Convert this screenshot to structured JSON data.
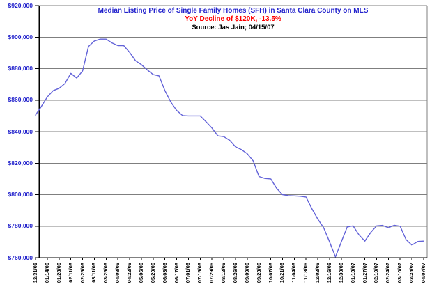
{
  "title": {
    "line1": "Median Listing Price of Single Family Homes (SFH) in Santa Clara County on MLS",
    "line2": "YoY Decline of $120K, -13.5%",
    "line3": "Source: Jas Jain; 04/15/07"
  },
  "colors": {
    "title_blue": "#2222cc",
    "decline_red": "#ff0000",
    "source_black": "#000000",
    "series_line": "#6262d8",
    "gridline": "#7f7f7f",
    "axis": "#000000",
    "y_label_blue": "#2222cc",
    "x_label_black": "#000000",
    "background": "#ffffff"
  },
  "chart_data": {
    "type": "line",
    "title": "Median Listing Price of Single Family Homes (SFH) in Santa Clara County on MLS",
    "subtitle": "YoY Decline of $120K, -13.5%",
    "source": "Source: Jas Jain; 04/15/07",
    "x": [
      "12/31/05",
      "01/07/06",
      "01/14/06",
      "01/21/06",
      "01/28/06",
      "02/04/06",
      "02/11/06",
      "02/18/06",
      "02/25/06",
      "03/04/06",
      "03/11/06",
      "03/18/06",
      "03/25/06",
      "04/01/06",
      "04/08/06",
      "04/15/06",
      "04/22/06",
      "04/29/06",
      "05/06/06",
      "05/13/06",
      "05/20/06",
      "05/27/06",
      "06/03/06",
      "06/10/06",
      "06/17/06",
      "06/24/06",
      "07/01/06",
      "07/08/06",
      "07/15/06",
      "07/22/06",
      "07/29/06",
      "08/05/06",
      "08/12/06",
      "08/19/06",
      "08/26/06",
      "09/02/06",
      "09/09/06",
      "09/16/06",
      "09/23/06",
      "09/30/06",
      "10/07/06",
      "10/14/06",
      "10/21/06",
      "10/28/06",
      "11/04/06",
      "11/11/06",
      "11/18/06",
      "11/25/06",
      "12/02/06",
      "12/09/06",
      "12/16/06",
      "12/23/06",
      "12/30/06",
      "01/06/07",
      "01/13/07",
      "01/20/07",
      "01/27/07",
      "02/03/07",
      "02/10/07",
      "02/17/07",
      "02/24/07",
      "03/03/07",
      "03/10/07",
      "03/17/07",
      "03/24/07",
      "03/31/07",
      "04/07/07"
    ],
    "values": [
      850500,
      856000,
      862000,
      866000,
      867500,
      870500,
      877000,
      874000,
      878500,
      894000,
      897500,
      898700,
      898700,
      896300,
      894600,
      894600,
      890300,
      885000,
      882500,
      879200,
      876200,
      875400,
      866000,
      858800,
      853500,
      850200,
      850000,
      850000,
      850000,
      846300,
      842300,
      837300,
      836800,
      834500,
      830400,
      828600,
      826000,
      821500,
      811500,
      810300,
      810000,
      804000,
      800000,
      799400,
      799200,
      799000,
      798500,
      791000,
      784500,
      779000,
      770000,
      760500,
      770000,
      779500,
      780200,
      774500,
      770500,
      776000,
      780200,
      780500,
      779000,
      780600,
      780000,
      771500,
      768000,
      770300,
      770500
    ],
    "x_tick_label_every": 2,
    "ylim": [
      760000,
      920000
    ],
    "y_tick_interval": 20000,
    "y_tick_labels": [
      "$920,000",
      "$900,000",
      "$880,000",
      "$860,000",
      "$840,000",
      "$820,000",
      "$800,000",
      "$780,000",
      "$760,000"
    ],
    "grid": "horizontal",
    "legend": "none"
  }
}
